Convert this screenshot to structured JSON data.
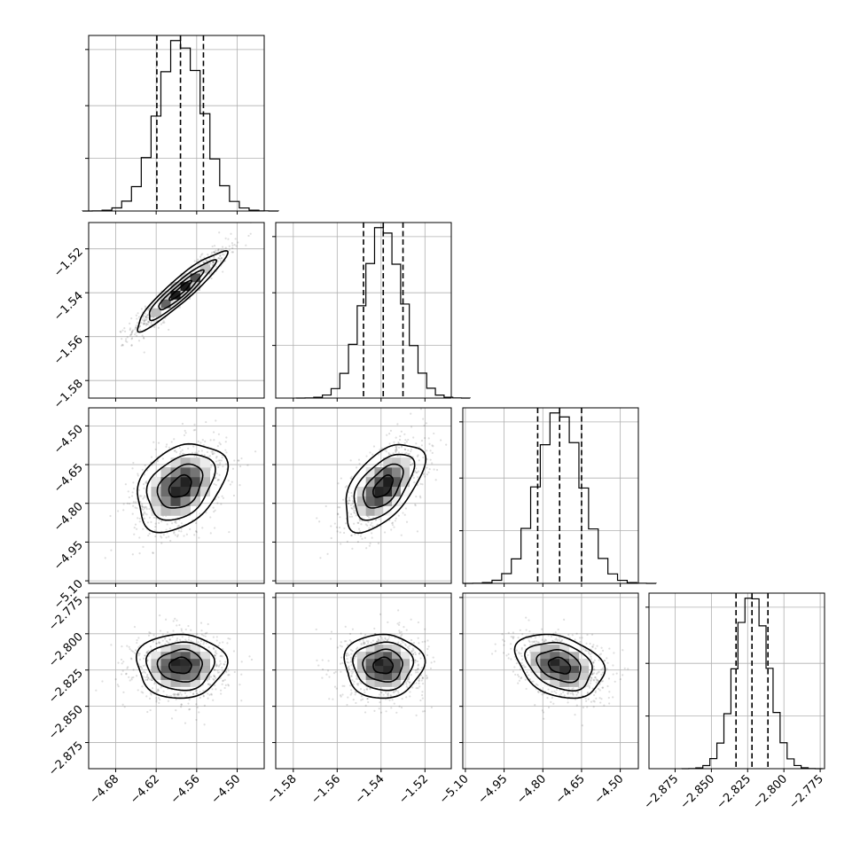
{
  "chart_data": {
    "type": "corner",
    "grid": true,
    "parameters": [
      {
        "ticks": [
          -4.68,
          -4.62,
          -4.56,
          -4.5
        ],
        "tick_labels": [
          "−4.68",
          "−4.62",
          "−4.56",
          "−4.50"
        ],
        "range": [
          -4.72,
          -4.46
        ],
        "mean": -4.584,
        "sd": 0.033,
        "quantiles": [
          -4.619,
          -4.584,
          -4.55
        ]
      },
      {
        "ticks": [
          -1.58,
          -1.56,
          -1.54,
          -1.52
        ],
        "tick_labels": [
          "−1.58",
          "−1.56",
          "−1.54",
          "−1.52"
        ],
        "range": [
          -1.588,
          -1.508
        ],
        "mean": -1.539,
        "sd": 0.009,
        "quantiles": [
          -1.548,
          -1.539,
          -1.53
        ]
      },
      {
        "ticks": [
          -5.1,
          -4.95,
          -4.8,
          -4.65,
          -4.5
        ],
        "tick_labels": [
          "−5.10",
          "−4.95",
          "−4.80",
          "−4.65",
          "−4.50"
        ],
        "range": [
          -5.11,
          -4.43
        ],
        "mean": -4.735,
        "sd": 0.085,
        "quantiles": [
          -4.82,
          -4.735,
          -4.65
        ]
      },
      {
        "ticks": [
          -2.875,
          -2.85,
          -2.825,
          -2.8,
          -2.775
        ],
        "tick_labels": [
          "−2.875",
          "−2.850",
          "−2.825",
          "−2.800",
          "−2.775"
        ],
        "range": [
          -2.893,
          -2.772
        ],
        "mean": -2.822,
        "sd": 0.011,
        "quantiles": [
          -2.833,
          -2.822,
          -2.811
        ]
      }
    ],
    "correlations": {
      "1-0": 0.93,
      "2-0": 0.35,
      "2-1": 0.55,
      "3-0": 0.0,
      "3-1": 0.0,
      "3-2": -0.3
    },
    "histogram_bins": 20,
    "quantile_style": "dashed",
    "contour_levels_sigma": [
      0.5,
      1.0,
      1.5,
      2.0
    ],
    "colors": {
      "line": "#000000",
      "grid": "#b0b0b0",
      "background": "#ffffff"
    }
  }
}
